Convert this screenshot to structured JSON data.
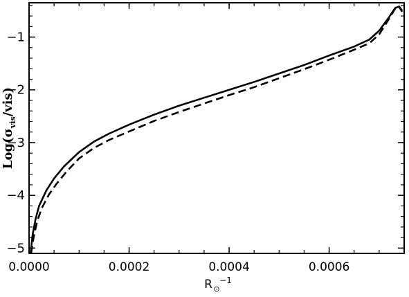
{
  "chart_data": {
    "type": "line",
    "title": "",
    "xlabel": "R⊙⁻¹",
    "ylabel": "Log(σvis/vis)",
    "xlim": [
      0,
      0.00075
    ],
    "ylim": [
      -5.1,
      -0.35
    ],
    "x_ticks": [
      0,
      0.0002,
      0.0004,
      0.0006
    ],
    "x_tick_labels": [
      "0.0000",
      "0.0002",
      "0.0004",
      "0.0006"
    ],
    "y_ticks": [
      -5,
      -4,
      -3,
      -2,
      -1
    ],
    "y_tick_labels": [
      "−5",
      "−4",
      "−3",
      "−2",
      "−1"
    ],
    "grid": false,
    "legend": "none",
    "series": [
      {
        "style": "solid",
        "color": "#000000",
        "points": [
          [
            3e-06,
            -5.1
          ],
          [
            7e-06,
            -4.75
          ],
          [
            1.3e-05,
            -4.45
          ],
          [
            2e-05,
            -4.2
          ],
          [
            3.5e-05,
            -3.9
          ],
          [
            5e-05,
            -3.68
          ],
          [
            7e-05,
            -3.45
          ],
          [
            0.0001,
            -3.18
          ],
          [
            0.00013,
            -2.98
          ],
          [
            0.00016,
            -2.83
          ],
          [
            0.0002,
            -2.66
          ],
          [
            0.00025,
            -2.47
          ],
          [
            0.0003,
            -2.3
          ],
          [
            0.00035,
            -2.15
          ],
          [
            0.0004,
            -2.0
          ],
          [
            0.00045,
            -1.85
          ],
          [
            0.0005,
            -1.69
          ],
          [
            0.00055,
            -1.53
          ],
          [
            0.0006,
            -1.35
          ],
          [
            0.00065,
            -1.18
          ],
          [
            0.00068,
            -1.05
          ],
          [
            0.0007,
            -0.88
          ],
          [
            0.00072,
            -0.62
          ],
          [
            0.000732,
            -0.45
          ],
          [
            0.00074,
            -0.42
          ],
          [
            0.000746,
            -0.5
          ]
        ]
      },
      {
        "style": "dashed",
        "color": "#000000",
        "points": [
          [
            4e-06,
            -5.1
          ],
          [
            9e-06,
            -4.8
          ],
          [
            1.6e-05,
            -4.5
          ],
          [
            2.5e-05,
            -4.25
          ],
          [
            4e-05,
            -3.98
          ],
          [
            5.5e-05,
            -3.78
          ],
          [
            7.5e-05,
            -3.55
          ],
          [
            0.0001,
            -3.3
          ],
          [
            0.00013,
            -3.1
          ],
          [
            0.00016,
            -2.95
          ],
          [
            0.0002,
            -2.79
          ],
          [
            0.00025,
            -2.59
          ],
          [
            0.0003,
            -2.42
          ],
          [
            0.00035,
            -2.26
          ],
          [
            0.0004,
            -2.1
          ],
          [
            0.00045,
            -1.95
          ],
          [
            0.0005,
            -1.78
          ],
          [
            0.00055,
            -1.61
          ],
          [
            0.0006,
            -1.43
          ],
          [
            0.00065,
            -1.24
          ],
          [
            0.00068,
            -1.12
          ],
          [
            0.0007,
            -0.95
          ],
          [
            0.00072,
            -0.65
          ],
          [
            0.000732,
            -0.46
          ],
          [
            0.00074,
            -0.43
          ],
          [
            0.000746,
            -0.52
          ]
        ]
      }
    ]
  }
}
